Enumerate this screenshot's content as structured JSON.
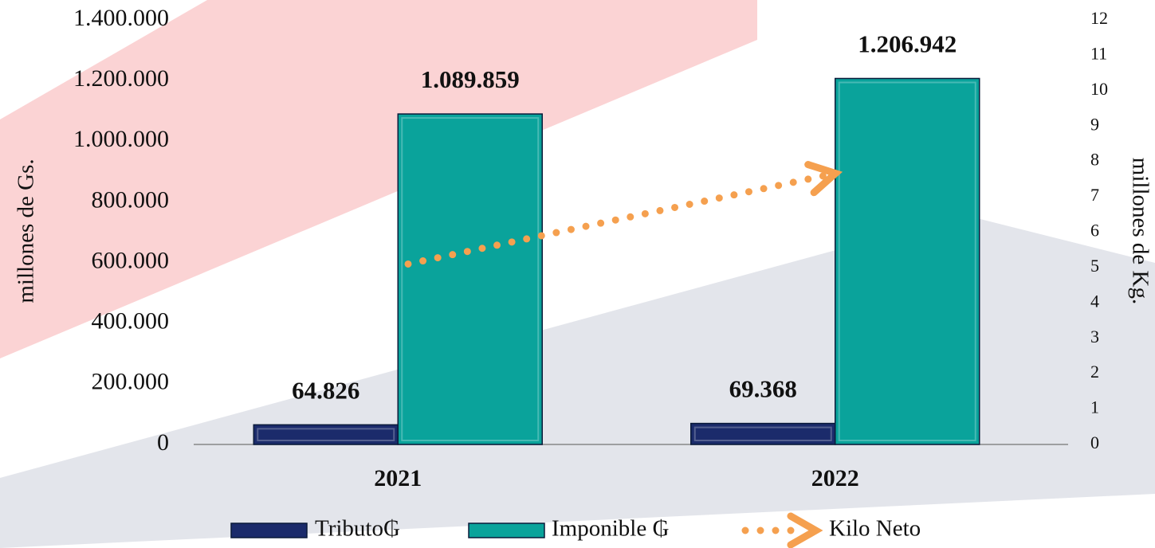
{
  "chart_data": {
    "type": "bar",
    "categories": [
      "2021",
      "2022"
    ],
    "series": [
      {
        "name": "Tributo₲",
        "color": "#1b2b6b",
        "values": [
          64826,
          69368
        ],
        "value_labels": [
          "64.826",
          "69.368"
        ]
      },
      {
        "name": "Imponible ₲",
        "color": "#0aa39b",
        "values": [
          1089859,
          1206942
        ],
        "value_labels": [
          "1.089.859",
          "1.206.942"
        ]
      },
      {
        "name": "Kilo Neto",
        "color": "#f5a04f",
        "type": "line",
        "axis": "y2",
        "values": [
          5.1,
          7.6
        ]
      }
    ],
    "ylabel": "millones de Gs.",
    "y2label": "millones de Kg.",
    "ylim": [
      0,
      1400000
    ],
    "yticks": [
      0,
      {
        "value": 200000,
        "label": "200.000"
      },
      {
        "value": 400000,
        "label": "400.000"
      },
      {
        "value": 600000,
        "label": "600.000"
      },
      {
        "value": 800000,
        "label": "800.000"
      },
      {
        "value": 1000000,
        "label": "1.000.000"
      },
      {
        "value": 1200000,
        "label": "1.200.000"
      },
      {
        "value": 1400000,
        "label": "1.400.000"
      }
    ],
    "y2lim": [
      0,
      12
    ],
    "y2ticks": [
      0,
      1,
      2,
      3,
      4,
      5,
      6,
      7,
      8,
      9,
      10,
      11,
      12
    ],
    "legend": "bottom"
  }
}
